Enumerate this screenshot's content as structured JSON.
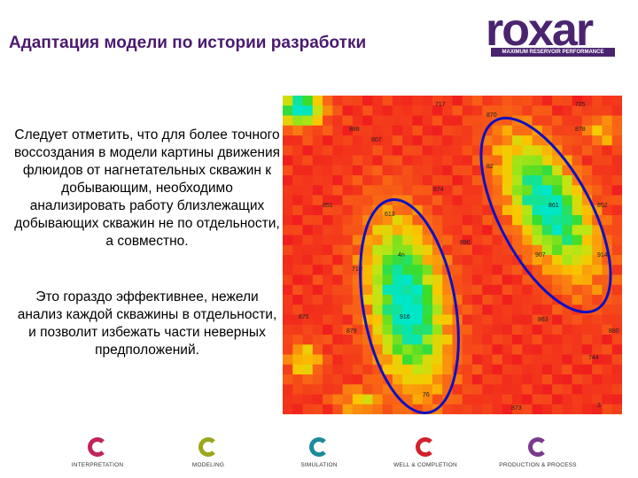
{
  "slide": {
    "title": "Адаптация модели по истории разработки",
    "paragraph1": "Следует отметить, что для более точного воссоздания в модели картины движения флюидов от нагнетательных скважин к добывающим, необходимо анализировать работу близлежащих добывающих скважин не по отдельности, а совместно.",
    "paragraph2": "Это гораздо эффективнее, нежели анализ каждой скважины в отдельности, и позволит избежать части неверных предположений."
  },
  "logo": {
    "word": "roxar",
    "tagline": "MAXIMUM RESERVOIR PERFORMANCE",
    "color": "#4a2470"
  },
  "map": {
    "well_labels": [
      "717",
      "725",
      "870",
      "878",
      "888",
      "807",
      "82",
      "874",
      "851",
      "613",
      "861",
      "852",
      "890",
      "4n",
      "907",
      "914",
      "710",
      "875",
      "916",
      "863",
      "879",
      "880",
      "744",
      "76",
      "873",
      "3"
    ]
  },
  "nav": [
    {
      "label": "INTERPRETATION",
      "color": "#c0245c"
    },
    {
      "label": "MODELING",
      "color": "#9aa71c"
    },
    {
      "label": "SIMULATION",
      "color": "#1c8a9a"
    },
    {
      "label": "WELL & COMPLETION",
      "color": "#d4202a"
    },
    {
      "label": "PRODUCTION & PROCESS",
      "color": "#7a3a8e"
    }
  ]
}
